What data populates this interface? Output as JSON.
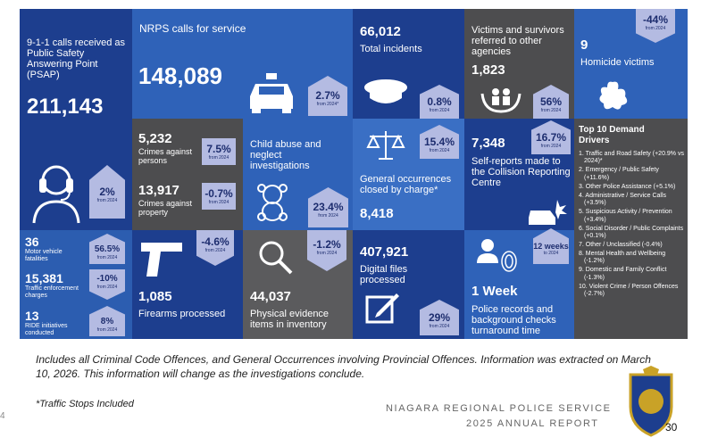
{
  "psap": {
    "label": "9-1-1 calls received as Public Safety Answering Point (PSAP)",
    "value": "211,143",
    "change": "2%",
    "change_note": "from 2024"
  },
  "traffic": {
    "items": [
      {
        "value": "36",
        "label": "Motor vehicle fatalities",
        "change": "56.5%",
        "change_note": "from 2024"
      },
      {
        "value": "15,381",
        "label": "Traffic enforcement charges",
        "change": "-10%",
        "change_note": "from 2024"
      },
      {
        "value": "13",
        "label": "RIDE initiatives conducted",
        "change": "8%",
        "change_note": "from 2024"
      }
    ]
  },
  "calls": {
    "label": "NRPS calls for service",
    "value": "148,089",
    "change": "2.7%",
    "change_note": "from 2024*"
  },
  "crimes": {
    "items": [
      {
        "value": "5,232",
        "label": "Crimes against persons",
        "change": "7.5%",
        "change_note": "from 2024"
      },
      {
        "value": "13,917",
        "label": "Crimes against property",
        "change": "-0.7%",
        "change_note": "from 2024"
      }
    ]
  },
  "child_abuse": {
    "label": "Child abuse and neglect investigations",
    "change": "23.4%",
    "change_note": "from 2024"
  },
  "firearms": {
    "value": "1,085",
    "label": "Firearms processed",
    "change": "-4.6%",
    "change_note": "from 2024"
  },
  "evidence": {
    "value": "44,037",
    "label": "Physical evidence items in inventory",
    "change": "-1.2%",
    "change_note": "from 2024"
  },
  "incidents": {
    "value": "66,012",
    "label": "Total incidents",
    "change": "0.8%",
    "change_note": "from 2024"
  },
  "occurrences": {
    "label": "General occurrences closed by charge*",
    "value": "8,418",
    "change": "15.4%",
    "change_note": "from 2024"
  },
  "digital": {
    "value": "407,921",
    "label": "Digital files processed",
    "change": "29%",
    "change_note": "from 2024"
  },
  "victims": {
    "label": "Victims and survivors referred to other agencies",
    "value": "1,823",
    "change": "56%",
    "change_note": "from 2024"
  },
  "collision": {
    "value": "7,348",
    "label": "Self-reports made to the Collision Reporting Centre",
    "change": "16.7%",
    "change_note": "from 2024"
  },
  "records": {
    "previous": "12 weeks",
    "previous_note": "to 2024",
    "value": "1 Week",
    "label": "Police records and background checks turnaround time"
  },
  "homicide": {
    "value": "9",
    "label": "Homicide victims",
    "change": "-44%",
    "change_note": "from 2024"
  },
  "drivers": {
    "title": "Top 10 Demand Drivers",
    "items": [
      "1. Traffic and Road Safety (+20.9% vs 2024)*",
      "2. Emergency / Public Safety (+11.6%)",
      "3. Other Police Assistance (+5.1%)",
      "4. Administrative / Service Calls (+3.5%)",
      "5. Suspicious Activity / Prevention (+3.4%)",
      "6. Social Disorder / Public Complaints (+0.1%)",
      "7. Other / Unclassified (-0.4%)",
      "8. Mental Health and Wellbeing (-1.2%)",
      "9. Domestic and Family Conflict (-1.3%)",
      "10. Violent Crime / Person Offences (-2.7%)"
    ]
  },
  "footer": {
    "note": "Includes all Criminal Code Offences, and General Occurrences involving Provincial Offences. Information was extracted on March 10, 2026. This information will change as the investigations conclude.",
    "footnote": "*Traffic Stops Included",
    "org": "NIAGARA REGIONAL POLICE SERVICE",
    "report": "2025 ANNUAL REPORT",
    "page": "30",
    "prev_page": "4"
  }
}
